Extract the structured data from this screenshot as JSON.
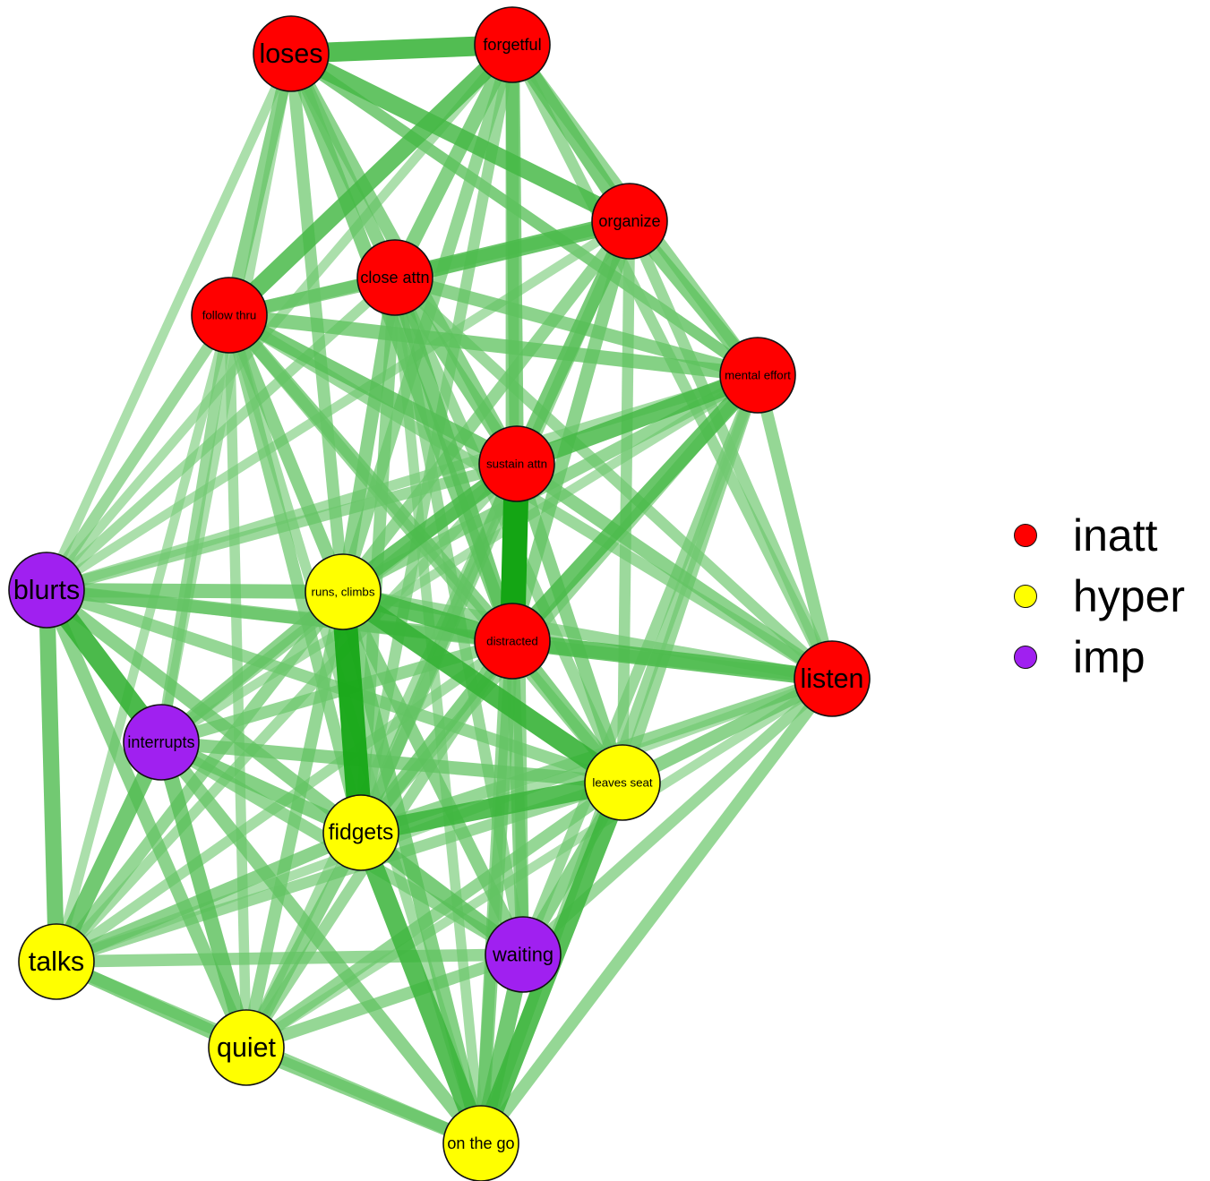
{
  "groups": [
    {
      "id": "inatt",
      "label": "inatt",
      "color": "#FF0000"
    },
    {
      "id": "hyper",
      "label": "hyper",
      "color": "#FFFF00"
    },
    {
      "id": "imp",
      "label": "imp",
      "color": "#A020F0"
    }
  ],
  "nodes": [
    {
      "id": "loses",
      "label": "loses",
      "group": "inatt"
    },
    {
      "id": "forgetful",
      "label": "forgetful",
      "group": "inatt"
    },
    {
      "id": "organize",
      "label": "organize",
      "group": "inatt"
    },
    {
      "id": "close-attn",
      "label": "close attn",
      "group": "inatt"
    },
    {
      "id": "follow-thru",
      "label": "follow thru",
      "group": "inatt"
    },
    {
      "id": "mental-effort",
      "label": "mental effort",
      "group": "inatt"
    },
    {
      "id": "sustain-attn",
      "label": "sustain attn",
      "group": "inatt"
    },
    {
      "id": "distracted",
      "label": "distracted",
      "group": "inatt"
    },
    {
      "id": "listen",
      "label": "listen",
      "group": "inatt"
    },
    {
      "id": "blurts",
      "label": "blurts",
      "group": "imp"
    },
    {
      "id": "runs-climbs",
      "label": "runs, climbs",
      "group": "hyper"
    },
    {
      "id": "interrupts",
      "label": "interrupts",
      "group": "imp"
    },
    {
      "id": "leaves-seat",
      "label": "leaves seat",
      "group": "hyper"
    },
    {
      "id": "fidgets",
      "label": "fidgets",
      "group": "hyper"
    },
    {
      "id": "waiting",
      "label": "waiting",
      "group": "imp"
    },
    {
      "id": "talks",
      "label": "talks",
      "group": "hyper"
    },
    {
      "id": "quiet",
      "label": "quiet",
      "group": "hyper"
    },
    {
      "id": "on-the-go",
      "label": "on the go",
      "group": "hyper"
    }
  ],
  "edges": [
    [
      "sustain-attn",
      "distracted",
      1.0
    ],
    [
      "runs-climbs",
      "fidgets",
      0.95
    ],
    [
      "loses",
      "forgetful",
      0.72
    ],
    [
      "runs-climbs",
      "leaves-seat",
      0.75
    ],
    [
      "runs-climbs",
      "distracted",
      0.65
    ],
    [
      "fidgets",
      "leaves-seat",
      0.7
    ],
    [
      "fidgets",
      "on-the-go",
      0.7
    ],
    [
      "on-the-go",
      "leaves-seat",
      0.7
    ],
    [
      "blurts",
      "interrupts",
      0.75
    ],
    [
      "forgetful",
      "follow-thru",
      0.62
    ],
    [
      "loses",
      "organize",
      0.62
    ],
    [
      "mental-effort",
      "distracted",
      0.6
    ],
    [
      "mental-effort",
      "sustain-attn",
      0.62
    ],
    [
      "runs-climbs",
      "sustain-attn",
      0.6
    ],
    [
      "distracted",
      "listen",
      0.6
    ],
    [
      "organize",
      "close-attn",
      0.6
    ],
    [
      "interrupts",
      "talks",
      0.55
    ],
    [
      "blurts",
      "talks",
      0.55
    ],
    [
      "on-the-go",
      "waiting",
      0.55
    ],
    [
      "fidgets",
      "waiting",
      0.5
    ],
    [
      "close-attn",
      "distracted",
      0.5
    ],
    [
      "follow-thru",
      "sustain-attn",
      0.5
    ],
    [
      "follow-thru",
      "mental-effort",
      0.45
    ],
    [
      "forgetful",
      "organize",
      0.5
    ],
    [
      "forgetful",
      "close-attn",
      0.45
    ],
    [
      "loses",
      "distracted",
      0.45
    ],
    [
      "organize",
      "sustain-attn",
      0.5
    ],
    [
      "organize",
      "mental-effort",
      0.45
    ],
    [
      "interrupts",
      "quiet",
      0.5
    ],
    [
      "talks",
      "quiet",
      0.45
    ],
    [
      "quiet",
      "on-the-go",
      0.4
    ],
    [
      "talks",
      "on-the-go",
      0.35
    ],
    [
      "blurts",
      "runs-climbs",
      0.45
    ],
    [
      "blurts",
      "distracted",
      0.4
    ],
    [
      "blurts",
      "follow-thru",
      0.3
    ],
    [
      "blurts",
      "loses",
      0.2
    ],
    [
      "blurts",
      "listen",
      0.35
    ],
    [
      "blurts",
      "leaves-seat",
      0.35
    ],
    [
      "blurts",
      "fidgets",
      0.4
    ],
    [
      "blurts",
      "quiet",
      0.4
    ],
    [
      "blurts",
      "sustain-attn",
      0.3
    ],
    [
      "interrupts",
      "fidgets",
      0.45
    ],
    [
      "interrupts",
      "leaves-seat",
      0.4
    ],
    [
      "interrupts",
      "runs-climbs",
      0.4
    ],
    [
      "interrupts",
      "waiting",
      0.35
    ],
    [
      "interrupts",
      "on-the-go",
      0.4
    ],
    [
      "interrupts",
      "distracted",
      0.35
    ],
    [
      "interrupts",
      "sustain-attn",
      0.3
    ],
    [
      "listen",
      "mental-effort",
      0.35
    ],
    [
      "listen",
      "sustain-attn",
      0.4
    ],
    [
      "listen",
      "leaves-seat",
      0.4
    ],
    [
      "listen",
      "fidgets",
      0.35
    ],
    [
      "listen",
      "on-the-go",
      0.35
    ],
    [
      "listen",
      "waiting",
      0.3
    ],
    [
      "listen",
      "organize",
      0.3
    ],
    [
      "listen",
      "close-attn",
      0.3
    ],
    [
      "listen",
      "runs-climbs",
      0.3
    ],
    [
      "listen",
      "talks",
      0.2
    ],
    [
      "listen",
      "quiet",
      0.2
    ],
    [
      "mental-effort",
      "close-attn",
      0.4
    ],
    [
      "mental-effort",
      "loses",
      0.3
    ],
    [
      "mental-effort",
      "forgetful",
      0.35
    ],
    [
      "mental-effort",
      "leaves-seat",
      0.3
    ],
    [
      "mental-effort",
      "runs-climbs",
      0.35
    ],
    [
      "mental-effort",
      "fidgets",
      0.3
    ],
    [
      "mental-effort",
      "waiting",
      0.3
    ],
    [
      "sustain-attn",
      "close-attn",
      0.45
    ],
    [
      "sustain-attn",
      "loses",
      0.4
    ],
    [
      "sustain-attn",
      "forgetful",
      0.45
    ],
    [
      "sustain-attn",
      "leaves-seat",
      0.4
    ],
    [
      "sustain-attn",
      "fidgets",
      0.4
    ],
    [
      "sustain-attn",
      "waiting",
      0.35
    ],
    [
      "sustain-attn",
      "on-the-go",
      0.35
    ],
    [
      "distracted",
      "forgetful",
      0.4
    ],
    [
      "distracted",
      "organize",
      0.4
    ],
    [
      "distracted",
      "follow-thru",
      0.4
    ],
    [
      "distracted",
      "leaves-seat",
      0.45
    ],
    [
      "distracted",
      "fidgets",
      0.45
    ],
    [
      "distracted",
      "waiting",
      0.4
    ],
    [
      "distracted",
      "on-the-go",
      0.4
    ],
    [
      "follow-thru",
      "close-attn",
      0.4
    ],
    [
      "follow-thru",
      "loses",
      0.4
    ],
    [
      "follow-thru",
      "organize",
      0.35
    ],
    [
      "follow-thru",
      "runs-climbs",
      0.4
    ],
    [
      "follow-thru",
      "fidgets",
      0.35
    ],
    [
      "follow-thru",
      "interrupts",
      0.3
    ],
    [
      "follow-thru",
      "leaves-seat",
      0.35
    ],
    [
      "follow-thru",
      "listen",
      0.3
    ],
    [
      "loses",
      "close-attn",
      0.4
    ],
    [
      "loses",
      "runs-climbs",
      0.35
    ],
    [
      "loses",
      "mental-effort",
      0.3
    ],
    [
      "forgetful",
      "runs-climbs",
      0.35
    ],
    [
      "forgetful",
      "fidgets",
      0.3
    ],
    [
      "forgetful",
      "listen",
      0.3
    ],
    [
      "organize",
      "runs-climbs",
      0.35
    ],
    [
      "organize",
      "leaves-seat",
      0.3
    ],
    [
      "organize",
      "fidgets",
      0.3
    ],
    [
      "close-attn",
      "runs-climbs",
      0.4
    ],
    [
      "close-attn",
      "fidgets",
      0.35
    ],
    [
      "close-attn",
      "leaves-seat",
      0.3
    ],
    [
      "close-attn",
      "waiting",
      0.3
    ],
    [
      "runs-climbs",
      "on-the-go",
      0.45
    ],
    [
      "runs-climbs",
      "waiting",
      0.4
    ],
    [
      "runs-climbs",
      "talks",
      0.35
    ],
    [
      "runs-climbs",
      "quiet",
      0.35
    ],
    [
      "fidgets",
      "talks",
      0.4
    ],
    [
      "fidgets",
      "quiet",
      0.4
    ],
    [
      "leaves-seat",
      "waiting",
      0.4
    ],
    [
      "leaves-seat",
      "talks",
      0.3
    ],
    [
      "leaves-seat",
      "quiet",
      0.35
    ],
    [
      "waiting",
      "talks",
      0.35
    ],
    [
      "waiting",
      "quiet",
      0.35
    ],
    [
      "talks",
      "sustain-attn",
      0.25
    ],
    [
      "quiet",
      "sustain-attn",
      0.25
    ],
    [
      "quiet",
      "distracted",
      0.3
    ],
    [
      "talks",
      "distracted",
      0.25
    ],
    [
      "talks",
      "follow-thru",
      0.2
    ],
    [
      "quiet",
      "follow-thru",
      0.25
    ],
    [
      "on-the-go",
      "mental-effort",
      0.3
    ],
    [
      "on-the-go",
      "close-attn",
      0.25
    ],
    [
      "on-the-go",
      "follow-thru",
      0.25
    ],
    [
      "blurts",
      "mental-effort",
      0.25
    ],
    [
      "blurts",
      "organize",
      0.2
    ],
    [
      "blurts",
      "forgetful",
      0.2
    ],
    [
      "blurts",
      "close-attn",
      0.25
    ],
    [
      "interrupts",
      "loses",
      0.2
    ],
    [
      "interrupts",
      "mental-effort",
      0.2
    ]
  ]
}
